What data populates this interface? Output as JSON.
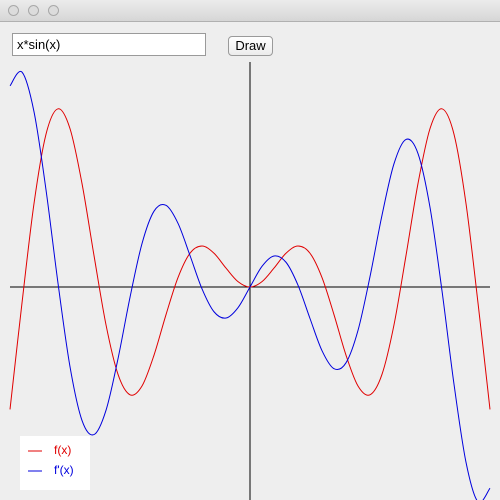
{
  "window": {
    "input": "x*sin(x)",
    "button": "Draw"
  },
  "chart_data": {
    "type": "line",
    "x": [
      -10,
      -9.5,
      -9,
      -8.5,
      -8,
      -7.5,
      -7,
      -6.5,
      -6,
      -5.5,
      -5,
      -4.5,
      -4,
      -3.5,
      -3,
      -2.5,
      -2,
      -1.5,
      -1,
      -0.5,
      0,
      0.5,
      1,
      1.5,
      2,
      2.5,
      3,
      3.5,
      4,
      4.5,
      5,
      5.5,
      6,
      6.5,
      7,
      7.5,
      8,
      8.5,
      9,
      9.5,
      10
    ],
    "series": [
      {
        "name": "f(x)",
        "color": "#e00000",
        "values": [
          -5.44,
          -0.71,
          3.71,
          6.79,
          7.92,
          7.04,
          4.6,
          1.4,
          -1.68,
          -3.88,
          -4.79,
          -4.4,
          -3.03,
          -1.23,
          0.42,
          1.5,
          1.82,
          1.5,
          0.84,
          0.24,
          0,
          0.24,
          0.84,
          1.5,
          1.82,
          1.5,
          0.42,
          -1.23,
          -3.03,
          -4.4,
          -4.79,
          -3.88,
          -1.68,
          1.4,
          4.6,
          7.04,
          7.92,
          6.79,
          3.71,
          -0.71,
          -5.44
        ]
      },
      {
        "name": "f'(x)",
        "color": "#0000dd",
        "values": [
          8.94,
          9.55,
          7.79,
          4.32,
          0.17,
          -3.54,
          -5.93,
          -6.56,
          -5.48,
          -3.19,
          -0.46,
          1.93,
          3.37,
          3.63,
          2.83,
          1.4,
          -0.08,
          -1.1,
          -1.38,
          -0.92,
          0,
          0.92,
          1.38,
          1.1,
          0.08,
          -1.4,
          -2.83,
          -3.63,
          -3.37,
          -1.93,
          0.46,
          3.19,
          5.48,
          6.56,
          5.93,
          3.54,
          -0.17,
          -4.32,
          -7.79,
          -9.55,
          -8.94
        ]
      }
    ],
    "xlim": [
      -10,
      10
    ],
    "ylim": [
      -10,
      10
    ],
    "legend": "lower left"
  }
}
